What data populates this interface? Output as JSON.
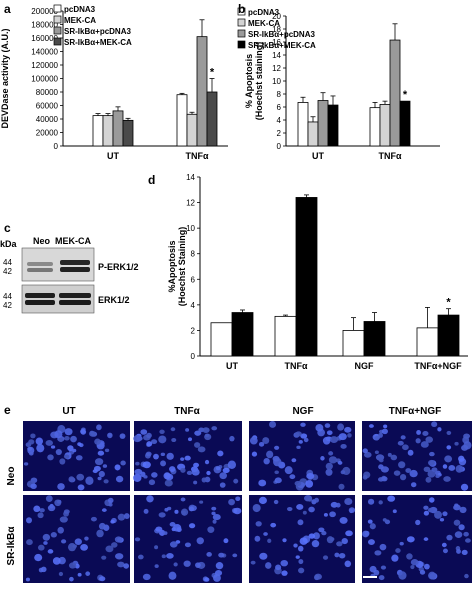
{
  "panel_labels": {
    "a": "a",
    "b": "b",
    "c": "c",
    "d": "d",
    "e": "e"
  },
  "colors": {
    "white": "#ffffff",
    "light_grey": "#d4d4d4",
    "mid_grey": "#9a9a9a",
    "dark_grey": "#4a4a4a",
    "black": "#000000",
    "nuclei": "#3344ff",
    "micro_bg": "#0a0a55"
  },
  "chart_data": [
    {
      "id": "a",
      "type": "bar",
      "ylabel": "DEVDase activity (A.U.)",
      "ylim": [
        0,
        200000
      ],
      "yticks": [
        "0",
        "20000",
        "40000",
        "60000",
        "80000",
        "100000",
        "120000",
        "140000",
        "160000",
        "180000",
        "200000"
      ],
      "categories": [
        "UT",
        "TNFα"
      ],
      "legend_position": "top-left",
      "series": [
        {
          "name": "pcDNA3",
          "color": "#ffffff",
          "values": [
            45000,
            76000
          ],
          "errors": [
            3000,
            2000
          ]
        },
        {
          "name": "MEK-CA",
          "color": "#d4d4d4",
          "values": [
            45000,
            47000
          ],
          "errors": [
            3000,
            3000
          ]
        },
        {
          "name": "SR-IkBα+pcDNA3",
          "color": "#9a9a9a",
          "values": [
            52000,
            162000
          ],
          "errors": [
            6000,
            25000
          ]
        },
        {
          "name": "SR-IkBα+MEK-CA",
          "color": "#4a4a4a",
          "values": [
            38000,
            80000
          ],
          "errors": [
            3000,
            20000
          ]
        }
      ],
      "annotations": [
        {
          "series": 3,
          "category": 1,
          "text": "*"
        }
      ]
    },
    {
      "id": "b",
      "type": "bar",
      "ylabel": "% Apoptosis (Hoechst staining)",
      "ylim": [
        0,
        20
      ],
      "yticks": [
        "0",
        "2",
        "4",
        "6",
        "8",
        "10",
        "12",
        "14",
        "16",
        "18",
        "20"
      ],
      "categories": [
        "UT",
        "TNFα"
      ],
      "legend_position": "top-left",
      "series": [
        {
          "name": "pcDNA3",
          "color": "#ffffff",
          "values": [
            6.7,
            5.9
          ],
          "errors": [
            0.8,
            0.8
          ]
        },
        {
          "name": "MEK-CA",
          "color": "#d4d4d4",
          "values": [
            3.7,
            6.4
          ],
          "errors": [
            0.8,
            0.5
          ]
        },
        {
          "name": "SR-IkBα+pcDNA3",
          "color": "#9a9a9a",
          "values": [
            7.0,
            16.3
          ],
          "errors": [
            1.2,
            2.5
          ]
        },
        {
          "name": "SR-IkBα+MEK-CA",
          "color": "#000000",
          "values": [
            6.3,
            6.9
          ],
          "errors": [
            1.4,
            0.0
          ]
        }
      ],
      "annotations": [
        {
          "series": 3,
          "category": 1,
          "text": "*"
        }
      ]
    },
    {
      "id": "d",
      "type": "bar",
      "ylabel": "%Apoptosis (Hoechst Staining)",
      "ylim": [
        0,
        14
      ],
      "yticks": [
        "0",
        "2",
        "4",
        "6",
        "8",
        "10",
        "12",
        "14"
      ],
      "categories": [
        "UT",
        "TNFα",
        "NGF",
        "TNFα+NGF"
      ],
      "series": [
        {
          "color": "#ffffff",
          "values": [
            2.6,
            3.1,
            2.0,
            2.2
          ],
          "errors": [
            0.0,
            0.1,
            1.0,
            1.6
          ]
        },
        {
          "color": "#000000",
          "values": [
            3.4,
            12.4,
            2.7,
            3.2
          ],
          "errors": [
            0.2,
            0.2,
            0.7,
            0.5
          ]
        }
      ],
      "annotations": [
        {
          "series": 1,
          "category": 3,
          "text": "*"
        }
      ]
    }
  ],
  "western": {
    "kda_label": "kDa",
    "lanes": [
      "Neo",
      "MEK-CA"
    ],
    "blots": [
      {
        "label": "P-ERK1/2",
        "markers": [
          "44",
          "42"
        ]
      },
      {
        "label": "ERK1/2",
        "markers": [
          "44",
          "42"
        ]
      }
    ]
  },
  "micrographs": {
    "columns": [
      "UT",
      "TNFα",
      "NGF",
      "TNFα+NGF"
    ],
    "rows": [
      "Neo",
      "SR-IkBα"
    ]
  }
}
